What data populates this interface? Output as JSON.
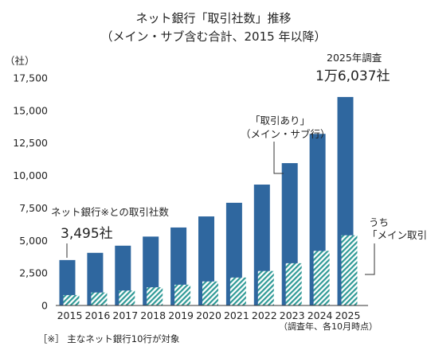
{
  "title": "ネット銀行「取引社数」推移",
  "subtitle": "（メイン・サブ含む合計、2015 年以降）",
  "footnote": "［※］ 主なネット銀行10行が対象",
  "annotations": {
    "right_top_label": "2025年調査",
    "right_top_value": "1万6,037社",
    "left_label": "ネット銀行※との取引社数",
    "left_value": "3,495社",
    "mid_label_1": "「取引あり」",
    "mid_label_2": "（メイン・サブ行）",
    "main_label_1": "うち",
    "main_label_2": "「メイン取引」",
    "note_under_axis": "（調査年、各10月時点）"
  },
  "colors": {
    "total": "#2f679f",
    "main": "#2f9a96"
  },
  "chart_data": {
    "type": "bar",
    "title": "ネット銀行「取引社数」推移",
    "subtitle": "（メイン・サブ含む合計、2015 年以降）",
    "ylabel": "（社）",
    "xlabel": "",
    "ylim": [
      0,
      17500
    ],
    "yticks": [
      0,
      2500,
      5000,
      7500,
      10000,
      12500,
      15000,
      17500
    ],
    "ytick_labels": [
      "0",
      "2,500",
      "5,000",
      "7,500",
      "10,000",
      "12,500",
      "15,000",
      "17,500"
    ],
    "categories": [
      "2015",
      "2016",
      "2017",
      "2018",
      "2019",
      "2020",
      "2021",
      "2022",
      "2023",
      "2024",
      "2025"
    ],
    "series": [
      {
        "name": "「取引あり」（メイン・サブ行）",
        "values": [
          3495,
          4050,
          4600,
          5300,
          6000,
          6850,
          7900,
          9300,
          10950,
          13200,
          16037
        ]
      },
      {
        "name": "うち「メイン取引」",
        "values": [
          800,
          1000,
          1150,
          1400,
          1600,
          1850,
          2150,
          2650,
          3250,
          4200,
          5400
        ]
      }
    ],
    "grid": false
  }
}
